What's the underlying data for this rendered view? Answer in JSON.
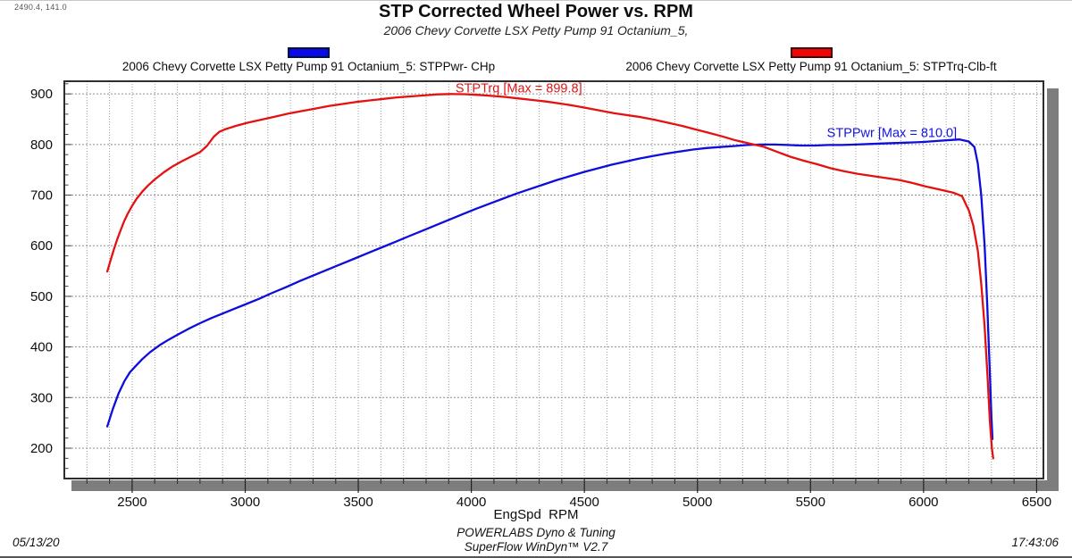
{
  "readout": "2490.4, 141.0",
  "title": "STP Corrected Wheel Power vs. RPM",
  "subtitle": "2006 Chevy Corvette LSX Petty Pump 91 Octanium_5,",
  "legend": [
    {
      "label": "2006 Chevy Corvette LSX Petty Pump 91 Octanium_5: STPPwr- CHp",
      "swatch_fill": "#0a0ae6",
      "swatch_border": "#001040"
    },
    {
      "label": "2006 Chevy Corvette LSX Petty Pump 91 Octanium_5: STPTrq-Clb-ft",
      "swatch_fill": "#ef0505",
      "swatch_border": "#400000"
    }
  ],
  "footer": {
    "xaxis_label": "EngSpd  RPM",
    "line1": "POWERLABS Dyno & Tuning",
    "line2": "SuperFlow WinDyn™ V2.7",
    "date": "05/13/20",
    "time": "17:43:06"
  },
  "chart_data": {
    "type": "line",
    "title": "STP Corrected Wheel Power vs. RPM",
    "xlabel": "EngSpd RPM",
    "ylabel": "",
    "xlim": [
      2200,
      6530
    ],
    "ylim": [
      140,
      925
    ],
    "x_ticks": [
      2500,
      3000,
      3500,
      4000,
      4500,
      5000,
      5500,
      6000,
      6500
    ],
    "y_ticks": [
      200,
      300,
      400,
      500,
      600,
      700,
      800,
      900
    ],
    "grid": {
      "x_step": 100,
      "y_step": 100,
      "style": "dotted"
    },
    "legend_position": "top",
    "annotations": [
      {
        "text": "STPTrq [Max = 899.8]",
        "color": "#e01414",
        "x": 4210,
        "y": 912
      },
      {
        "text": "STPPwr [Max = 810.0]",
        "color": "#1414e0",
        "x": 5860,
        "y": 824
      }
    ],
    "series": [
      {
        "name": "STPPwr - CHp",
        "color": "#0d0ddc",
        "max": 810.0,
        "points": [
          [
            2390,
            243
          ],
          [
            2415,
            278
          ],
          [
            2440,
            308
          ],
          [
            2465,
            332
          ],
          [
            2490,
            350
          ],
          [
            2515,
            362
          ],
          [
            2545,
            376
          ],
          [
            2580,
            390
          ],
          [
            2620,
            403
          ],
          [
            2660,
            414
          ],
          [
            2700,
            424
          ],
          [
            2750,
            436
          ],
          [
            2800,
            447
          ],
          [
            2850,
            457
          ],
          [
            2900,
            466
          ],
          [
            2950,
            475
          ],
          [
            3000,
            484
          ],
          [
            3060,
            495
          ],
          [
            3120,
            507
          ],
          [
            3180,
            518
          ],
          [
            3240,
            530
          ],
          [
            3300,
            541
          ],
          [
            3360,
            552
          ],
          [
            3420,
            563
          ],
          [
            3480,
            574
          ],
          [
            3540,
            585
          ],
          [
            3600,
            596
          ],
          [
            3660,
            607
          ],
          [
            3720,
            618
          ],
          [
            3780,
            629
          ],
          [
            3840,
            640
          ],
          [
            3900,
            651
          ],
          [
            3960,
            662
          ],
          [
            4020,
            673
          ],
          [
            4080,
            683
          ],
          [
            4140,
            693
          ],
          [
            4200,
            703
          ],
          [
            4260,
            712
          ],
          [
            4320,
            721
          ],
          [
            4380,
            730
          ],
          [
            4440,
            738
          ],
          [
            4500,
            746
          ],
          [
            4560,
            753
          ],
          [
            4620,
            760
          ],
          [
            4680,
            766
          ],
          [
            4740,
            772
          ],
          [
            4800,
            777
          ],
          [
            4860,
            782
          ],
          [
            4920,
            786
          ],
          [
            4980,
            790
          ],
          [
            5040,
            793
          ],
          [
            5100,
            795
          ],
          [
            5160,
            797
          ],
          [
            5220,
            799
          ],
          [
            5280,
            800
          ],
          [
            5340,
            800
          ],
          [
            5400,
            799
          ],
          [
            5460,
            798
          ],
          [
            5520,
            798
          ],
          [
            5580,
            799
          ],
          [
            5640,
            799
          ],
          [
            5700,
            800
          ],
          [
            5760,
            801
          ],
          [
            5820,
            802
          ],
          [
            5880,
            803
          ],
          [
            5940,
            804
          ],
          [
            6000,
            805
          ],
          [
            6060,
            807
          ],
          [
            6120,
            809
          ],
          [
            6160,
            810
          ],
          [
            6200,
            806
          ],
          [
            6225,
            795
          ],
          [
            6240,
            762
          ],
          [
            6255,
            700
          ],
          [
            6270,
            600
          ],
          [
            6282,
            480
          ],
          [
            6292,
            360
          ],
          [
            6300,
            262
          ],
          [
            6305,
            218
          ]
        ]
      },
      {
        "name": "STPTrq - Clb-ft",
        "color": "#e41111",
        "max": 899.8,
        "points": [
          [
            2390,
            549
          ],
          [
            2405,
            572
          ],
          [
            2420,
            594
          ],
          [
            2435,
            614
          ],
          [
            2450,
            632
          ],
          [
            2465,
            649
          ],
          [
            2480,
            663
          ],
          [
            2500,
            679
          ],
          [
            2520,
            693
          ],
          [
            2545,
            707
          ],
          [
            2570,
            719
          ],
          [
            2600,
            731
          ],
          [
            2640,
            745
          ],
          [
            2680,
            757
          ],
          [
            2720,
            767
          ],
          [
            2760,
            776
          ],
          [
            2800,
            785
          ],
          [
            2830,
            797
          ],
          [
            2860,
            815
          ],
          [
            2885,
            825
          ],
          [
            2910,
            830
          ],
          [
            2960,
            837
          ],
          [
            3010,
            843
          ],
          [
            3070,
            849
          ],
          [
            3130,
            855
          ],
          [
            3190,
            861
          ],
          [
            3250,
            866
          ],
          [
            3310,
            871
          ],
          [
            3370,
            876
          ],
          [
            3430,
            880
          ],
          [
            3490,
            884
          ],
          [
            3550,
            887
          ],
          [
            3610,
            890
          ],
          [
            3670,
            893
          ],
          [
            3730,
            895
          ],
          [
            3790,
            897
          ],
          [
            3850,
            899
          ],
          [
            3910,
            899.8
          ],
          [
            3970,
            899.5
          ],
          [
            4030,
            898
          ],
          [
            4090,
            896
          ],
          [
            4150,
            894
          ],
          [
            4210,
            891
          ],
          [
            4270,
            888
          ],
          [
            4330,
            885
          ],
          [
            4390,
            881
          ],
          [
            4450,
            877
          ],
          [
            4510,
            872
          ],
          [
            4570,
            867
          ],
          [
            4630,
            862
          ],
          [
            4690,
            858
          ],
          [
            4750,
            854
          ],
          [
            4810,
            849
          ],
          [
            4870,
            843
          ],
          [
            4930,
            837
          ],
          [
            4990,
            830
          ],
          [
            5050,
            823
          ],
          [
            5110,
            816
          ],
          [
            5170,
            808
          ],
          [
            5230,
            802
          ],
          [
            5290,
            796
          ],
          [
            5350,
            786
          ],
          [
            5410,
            776
          ],
          [
            5470,
            768
          ],
          [
            5530,
            761
          ],
          [
            5590,
            753
          ],
          [
            5650,
            747
          ],
          [
            5710,
            742
          ],
          [
            5770,
            738
          ],
          [
            5830,
            734
          ],
          [
            5890,
            730
          ],
          [
            5950,
            724
          ],
          [
            6010,
            717
          ],
          [
            6070,
            711
          ],
          [
            6130,
            705
          ],
          [
            6170,
            698
          ],
          [
            6200,
            670
          ],
          [
            6220,
            640
          ],
          [
            6240,
            590
          ],
          [
            6255,
            525
          ],
          [
            6270,
            440
          ],
          [
            6283,
            340
          ],
          [
            6293,
            255
          ],
          [
            6302,
            200
          ],
          [
            6308,
            180
          ]
        ]
      }
    ]
  }
}
